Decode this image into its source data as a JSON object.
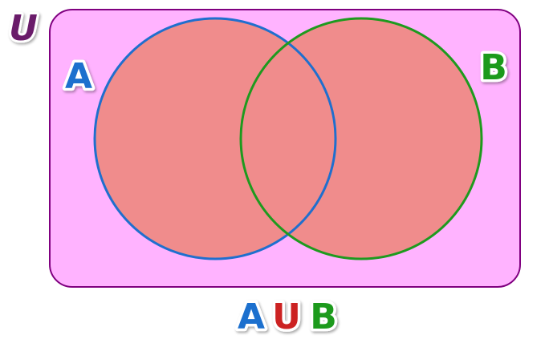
{
  "universe": {
    "label": "U",
    "fill": "#ffb3ff",
    "stroke": "#800080",
    "label_color": "#6a1b6a"
  },
  "sets": [
    {
      "label": "A",
      "color": "#1f6fce",
      "fill": "#f08c8c"
    },
    {
      "label": "B",
      "color": "#1e9a1e",
      "fill": "#f08c8c"
    }
  ],
  "caption": {
    "left": "A",
    "operator": "U",
    "right": "B",
    "left_color": "#1f6fce",
    "operator_color": "#cc2222",
    "right_color": "#1e9a1e"
  }
}
